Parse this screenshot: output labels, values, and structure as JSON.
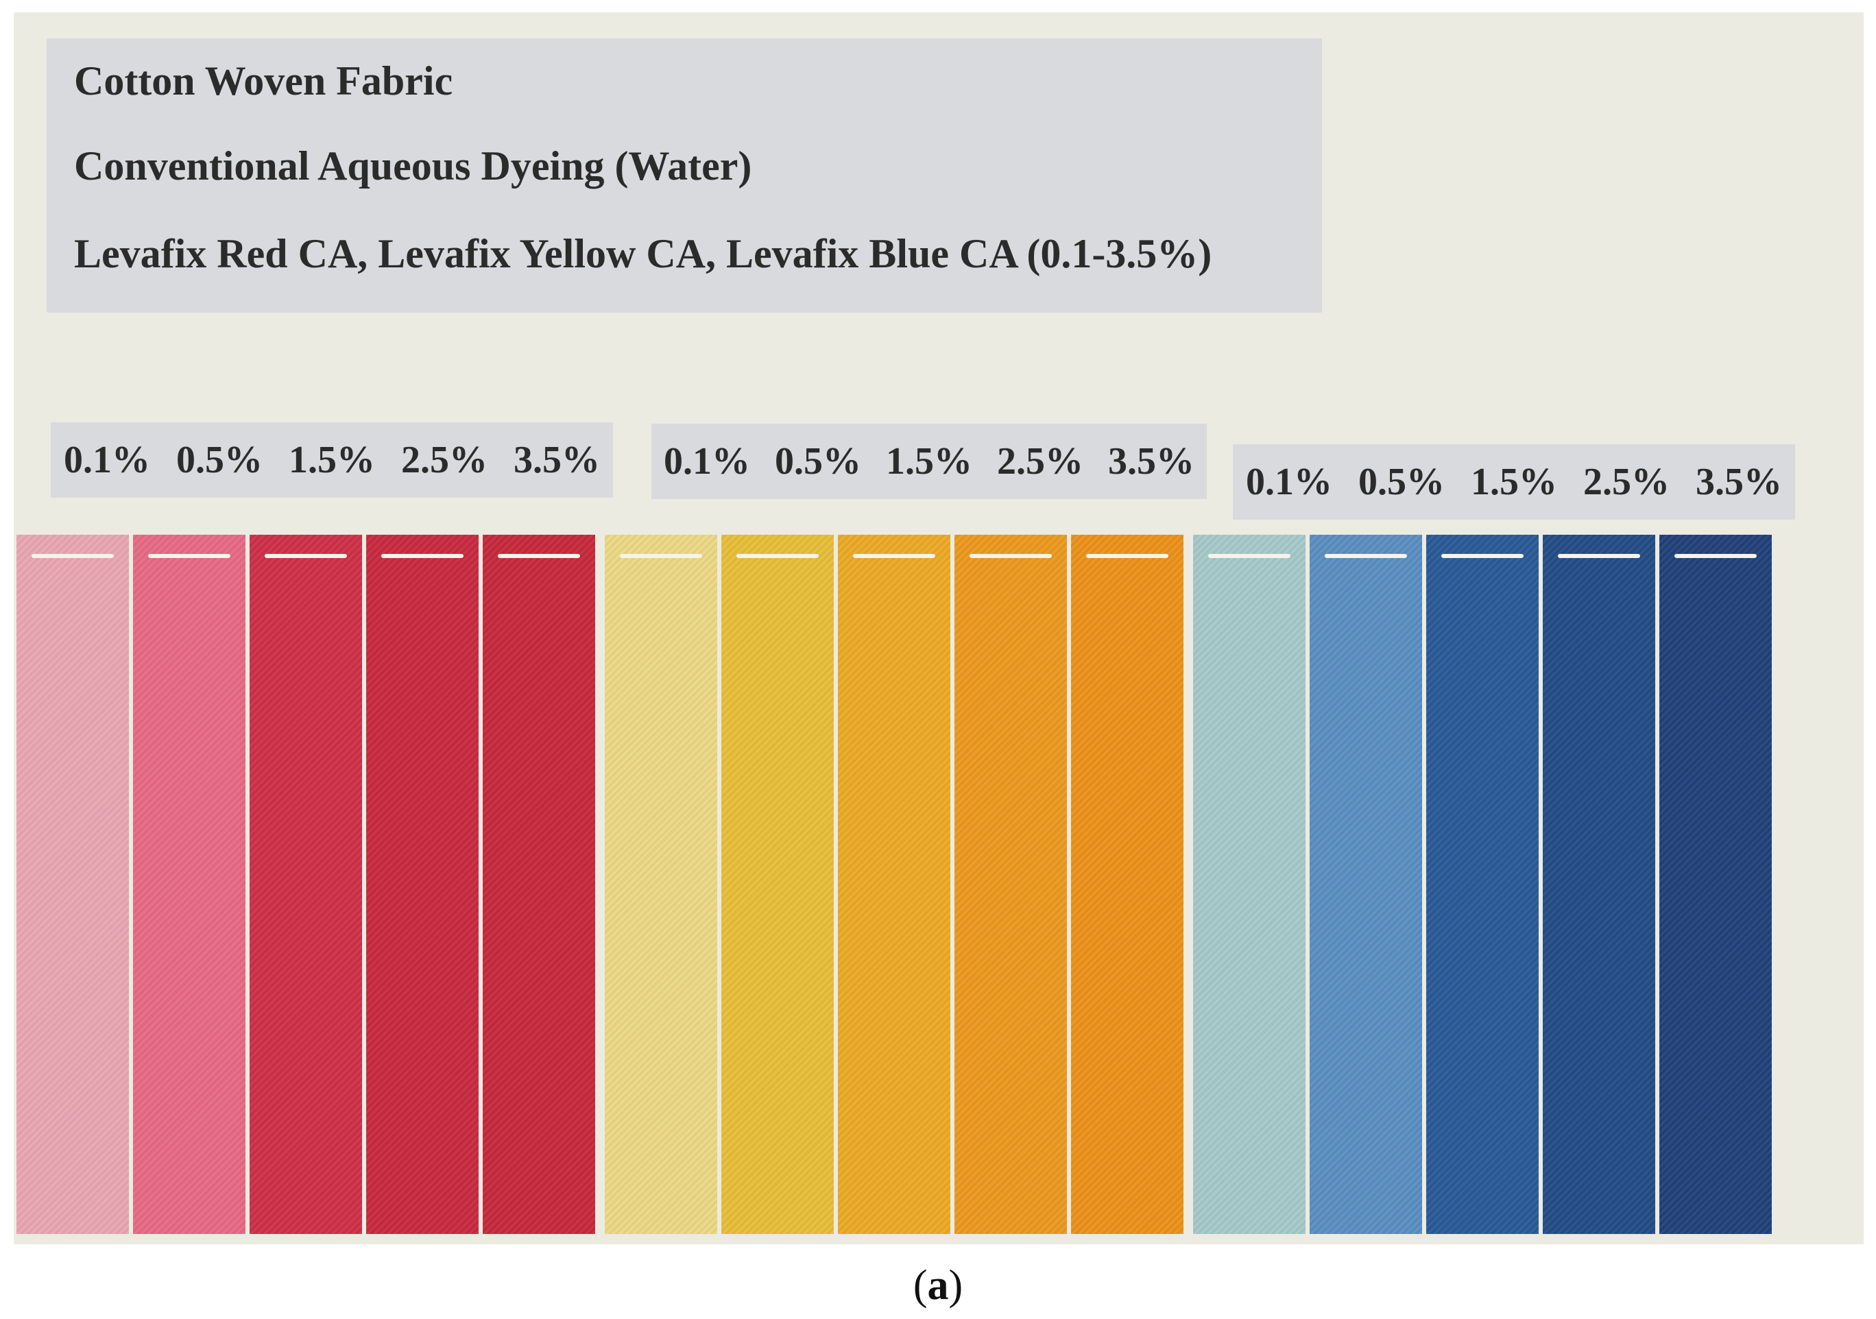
{
  "title_lines": [
    "Cotton Woven Fabric",
    "Conventional Aqueous Dyeing (Water)",
    "Levafix Red CA, Levafix Yellow CA, Levafix Blue CA (0.1-3.5%)"
  ],
  "concentrations": [
    "0.1%",
    "0.5%",
    "1.5%",
    "2.5%",
    "3.5%"
  ],
  "dye_groups": [
    {
      "name": "Levafix Red CA",
      "colors": [
        "#e9a7b3",
        "#e76a85",
        "#cf3149",
        "#c92b41",
        "#c72a3c"
      ]
    },
    {
      "name": "Levafix Yellow CA",
      "colors": [
        "#ebd985",
        "#e8be3a",
        "#ecaa26",
        "#ec9a20",
        "#ec921b"
      ]
    },
    {
      "name": "Levafix Blue CA",
      "colors": [
        "#a6c9c9",
        "#5b8fc2",
        "#2b5b98",
        "#244d87",
        "#22427b"
      ]
    }
  ],
  "caption_open": "(",
  "caption_letter": "a",
  "caption_close": ")"
}
